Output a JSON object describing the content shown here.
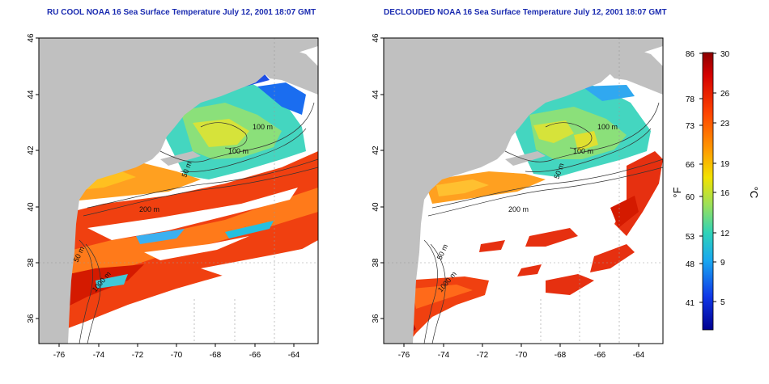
{
  "panels": [
    {
      "title": "RU COOL NOAA 16 Sea Surface Temperature July 12, 2001 18:07 GMT",
      "contour_labels": [
        "100 m",
        "100 m",
        "50 m",
        "200 m",
        "50 m",
        "1000 m"
      ]
    },
    {
      "title": "DECLOUDED NOAA 16 Sea Surface Temperature July 12, 2001 18:07 GMT",
      "contour_labels": [
        "100 m",
        "100 m",
        "50 m",
        "200 m",
        "50 m",
        "1000 m"
      ]
    }
  ],
  "axes": {
    "y_ticks": [
      "46",
      "44",
      "42",
      "40",
      "38",
      "36"
    ],
    "x_ticks": [
      "-76",
      "-74",
      "-72",
      "-70",
      "-68",
      "-66",
      "-64"
    ]
  },
  "colorbar": {
    "f_unit": "°F",
    "c_unit": "°C",
    "f_ticks": [
      "86",
      "78",
      "73",
      "66",
      "60",
      "53",
      "48",
      "41"
    ],
    "c_ticks": [
      "30",
      "26",
      "23",
      "19",
      "16",
      "12",
      "9",
      "5"
    ]
  },
  "colors": {
    "land": "#c0c0c0",
    "cloud": "#ffffff",
    "title": "#1a2bb0"
  }
}
